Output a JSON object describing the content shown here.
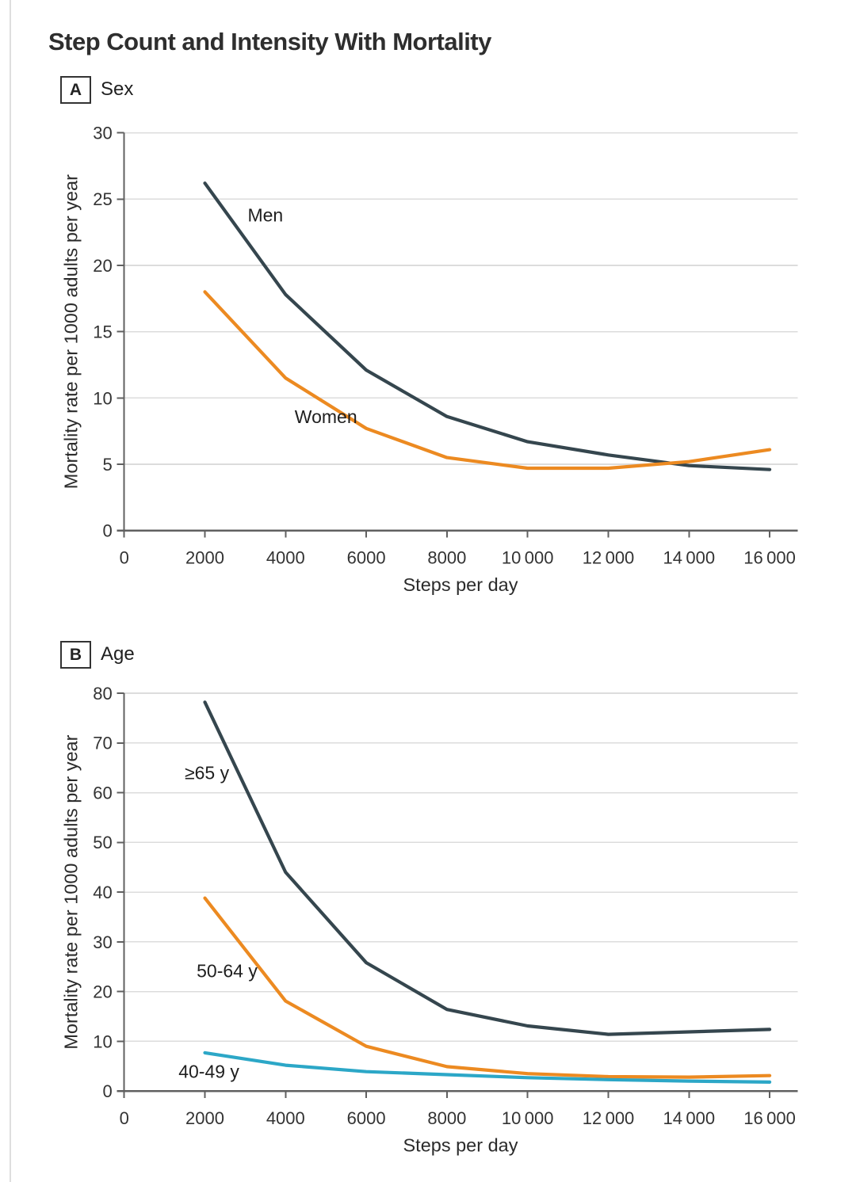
{
  "title": "Step Count and Intensity With Mortality",
  "colors": {
    "dark": "#35464e",
    "orange": "#ec8a21",
    "cyan": "#2ca7c7",
    "grid": "#dcdcdc",
    "axis": "#606060",
    "tick_text": "#333333",
    "label_text": "#1f1f1f",
    "title_text": "#2e2e2e"
  },
  "chart_data": [
    {
      "type": "line",
      "panel_letter": "A",
      "panel_title": "Sex",
      "xlabel": "Steps per day",
      "ylabel": "Mortality rate per 1000 adults per year",
      "x": [
        2000,
        4000,
        6000,
        8000,
        10000,
        12000,
        14000,
        16000
      ],
      "xticks": [
        0,
        2000,
        4000,
        6000,
        8000,
        10000,
        12000,
        14000,
        16000
      ],
      "xtick_labels": [
        "0",
        "2000",
        "4000",
        "6000",
        "8000",
        "10 000",
        "12 000",
        "14 000",
        "16 000"
      ],
      "ylim": [
        0,
        30
      ],
      "ytick_step": 5,
      "grid": true,
      "legend": "inline-labels",
      "series": [
        {
          "name": "Men",
          "color_key": "dark",
          "values": [
            26.2,
            17.8,
            12.1,
            8.6,
            6.7,
            5.7,
            4.9,
            4.6
          ],
          "label": {
            "text": "Men",
            "at_steps": 3500,
            "at_value": 23.8
          }
        },
        {
          "name": "Women",
          "color_key": "orange",
          "values": [
            18.0,
            11.5,
            7.7,
            5.5,
            4.7,
            4.7,
            5.2,
            6.1
          ],
          "label": {
            "text": "Women",
            "at_steps": 5000,
            "at_value": 8.6
          }
        }
      ]
    },
    {
      "type": "line",
      "panel_letter": "B",
      "panel_title": "Age",
      "xlabel": "Steps per day",
      "ylabel": "Mortality rate per 1000 adults per year",
      "x": [
        2000,
        4000,
        6000,
        8000,
        10000,
        12000,
        14000,
        16000
      ],
      "xticks": [
        0,
        2000,
        4000,
        6000,
        8000,
        10000,
        12000,
        14000,
        16000
      ],
      "xtick_labels": [
        "0",
        "2000",
        "4000",
        "6000",
        "8000",
        "10 000",
        "12 000",
        "14 000",
        "16 000"
      ],
      "ylim": [
        0,
        80
      ],
      "ytick_step": 10,
      "grid": true,
      "legend": "inline-labels",
      "series": [
        {
          "name": "≥65 y",
          "color_key": "dark",
          "values": [
            78.2,
            44.0,
            25.8,
            16.4,
            13.1,
            11.4,
            11.9,
            12.4
          ],
          "label": {
            "text": "≥65 y",
            "at_steps": 2050,
            "at_value": 64.0
          }
        },
        {
          "name": "50-64 y",
          "color_key": "orange",
          "values": [
            38.8,
            18.1,
            9.0,
            4.9,
            3.5,
            2.9,
            2.8,
            3.1
          ],
          "label": {
            "text": "50-64 y",
            "at_steps": 2550,
            "at_value": 24.2
          }
        },
        {
          "name": "40-49 y",
          "color_key": "cyan",
          "values": [
            7.7,
            5.2,
            3.9,
            3.3,
            2.7,
            2.3,
            2.0,
            1.8
          ],
          "label": {
            "text": "40-49 y",
            "at_steps": 2100,
            "at_value": 4.0
          }
        }
      ]
    }
  ]
}
